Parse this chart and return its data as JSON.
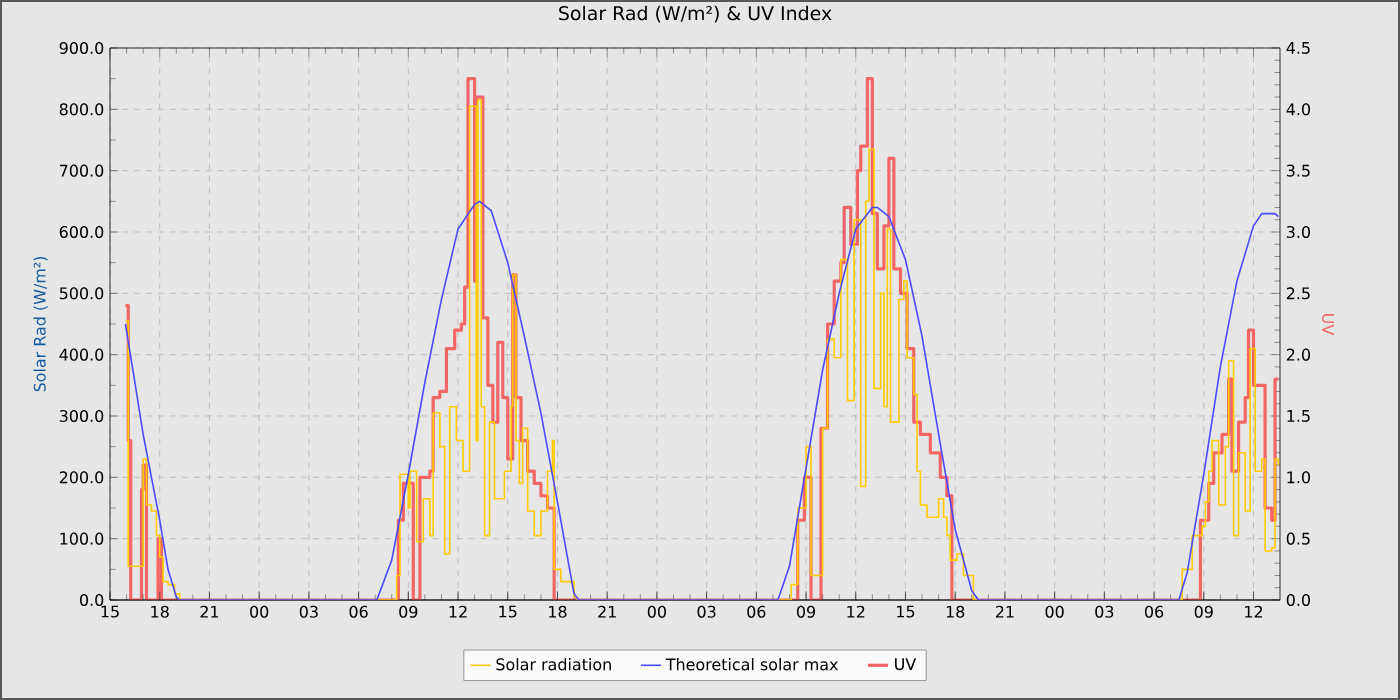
{
  "chart_data": {
    "type": "line",
    "title": "Solar Rad (W/m²) &  UV Index",
    "ylabel": "Solar Rad (W/m²)",
    "y2label": "UV",
    "xlim": [
      15,
      85.6
    ],
    "ylim": [
      0,
      900
    ],
    "y2lim": [
      0,
      4.5
    ],
    "xticks": [
      {
        "value": 15,
        "label": "15"
      },
      {
        "value": 18,
        "label": "18"
      },
      {
        "value": 21,
        "label": "21"
      },
      {
        "value": 24,
        "label": "00"
      },
      {
        "value": 27,
        "label": "03"
      },
      {
        "value": 30,
        "label": "06"
      },
      {
        "value": 33,
        "label": "09"
      },
      {
        "value": 36,
        "label": "12"
      },
      {
        "value": 39,
        "label": "15"
      },
      {
        "value": 42,
        "label": "18"
      },
      {
        "value": 45,
        "label": "21"
      },
      {
        "value": 48,
        "label": "00"
      },
      {
        "value": 51,
        "label": "03"
      },
      {
        "value": 54,
        "label": "06"
      },
      {
        "value": 57,
        "label": "09"
      },
      {
        "value": 60,
        "label": "12"
      },
      {
        "value": 63,
        "label": "15"
      },
      {
        "value": 66,
        "label": "18"
      },
      {
        "value": 69,
        "label": "21"
      },
      {
        "value": 72,
        "label": "00"
      },
      {
        "value": 75,
        "label": "03"
      },
      {
        "value": 78,
        "label": "06"
      },
      {
        "value": 81,
        "label": "09"
      },
      {
        "value": 84,
        "label": "12"
      }
    ],
    "yticks": [
      {
        "value": 0,
        "label": "0.0"
      },
      {
        "value": 100,
        "label": "100.0"
      },
      {
        "value": 200,
        "label": "200.0"
      },
      {
        "value": 300,
        "label": "300.0"
      },
      {
        "value": 400,
        "label": "400.0"
      },
      {
        "value": 500,
        "label": "500.0"
      },
      {
        "value": 600,
        "label": "600.0"
      },
      {
        "value": 700,
        "label": "700.0"
      },
      {
        "value": 800,
        "label": "800.0"
      },
      {
        "value": 900,
        "label": "900.0"
      }
    ],
    "y2ticks": [
      {
        "value": 0,
        "label": "0.0"
      },
      0.5,
      {
        "value": 1,
        "label": "1.0"
      },
      1.5,
      {
        "value": 2,
        "label": "2.0"
      },
      2.5,
      {
        "value": 3,
        "label": "3.0"
      },
      3.5,
      {
        "value": 4,
        "label": "4.0"
      },
      4.5
    ],
    "grid": true,
    "legend": "bottom",
    "series": [
      {
        "name": "Solar radiation",
        "type": "step",
        "color": "#ffcc00",
        "x": [
          15.93,
          16.1,
          17.0,
          17.2,
          17.5,
          17.8,
          18.0,
          18.2,
          18.5,
          18.9,
          19.2,
          31.1,
          32.3,
          32.5,
          33.0,
          33.1,
          33.5,
          33.9,
          34.3,
          34.5,
          34.9,
          35.2,
          35.5,
          35.9,
          36.3,
          36.7,
          37.0,
          37.1,
          37.2,
          37.4,
          37.6,
          37.9,
          38.2,
          38.6,
          38.8,
          39.2,
          39.3,
          39.5,
          39.7,
          39.9,
          40.2,
          40.6,
          41.0,
          41.4,
          41.7,
          41.8,
          42.2,
          43.0,
          43.2,
          55.2,
          56.1,
          56.5,
          57.0,
          57.3,
          58.0,
          58.3,
          58.7,
          59.1,
          59.5,
          59.9,
          60.3,
          60.6,
          60.8,
          61.1,
          61.5,
          61.7,
          61.9,
          62.1,
          62.6,
          62.9,
          63.1,
          63.5,
          63.7,
          63.9,
          64.3,
          64.7,
          65.0,
          65.3,
          65.5,
          65.7,
          66.1,
          66.5,
          67.1,
          79.3,
          79.7,
          80.3,
          80.9,
          81.1,
          81.3,
          81.5,
          81.9,
          82.3,
          82.5,
          82.8,
          83.1,
          83.5,
          83.8,
          84.1,
          84.5,
          84.7,
          85.1,
          85.3,
          85.5
        ],
        "values": [
          455,
          55,
          230,
          155,
          145,
          105,
          70,
          30,
          25,
          10,
          0,
          0,
          40,
          205,
          150,
          210,
          95,
          165,
          105,
          305,
          250,
          75,
          315,
          260,
          210,
          805,
          805,
          260,
          815,
          315,
          105,
          290,
          165,
          165,
          210,
          315,
          530,
          260,
          190,
          280,
          145,
          105,
          145,
          210,
          260,
          50,
          30,
          5,
          0,
          0,
          25,
          150,
          250,
          40,
          280,
          425,
          395,
          555,
          325,
          620,
          185,
          650,
          735,
          345,
          500,
          315,
          605,
          290,
          490,
          520,
          395,
          335,
          210,
          155,
          135,
          135,
          165,
          135,
          105,
          65,
          75,
          40,
          0,
          0,
          50,
          105,
          120,
          160,
          210,
          260,
          155,
          250,
          390,
          105,
          240,
          145,
          410,
          210,
          230,
          80,
          85,
          230,
          220
        ]
      },
      {
        "name": "Theoretical solar max",
        "type": "line",
        "color": "#4a4aff",
        "x": [
          15.93,
          16.5,
          17,
          17.5,
          18,
          18.5,
          19,
          19.2,
          31.1,
          32,
          33,
          34,
          35,
          36,
          37,
          37.3,
          38,
          39,
          40,
          41,
          42,
          43,
          43.3,
          55.3,
          56,
          57,
          58,
          59,
          60,
          61,
          61.3,
          62,
          63,
          64,
          65,
          66,
          67,
          67.4,
          79.5,
          80,
          81,
          82,
          83,
          84,
          84.5,
          85.3,
          85.5
        ],
        "values": [
          450,
          355,
          270,
          200,
          130,
          50,
          5,
          0,
          0,
          65,
          205,
          355,
          490,
          605,
          645,
          650,
          635,
          550,
          430,
          305,
          160,
          10,
          0,
          0,
          55,
          215,
          375,
          500,
          605,
          640,
          640,
          625,
          555,
          430,
          270,
          115,
          15,
          0,
          0,
          45,
          205,
          380,
          520,
          610,
          630,
          630,
          625
        ]
      },
      {
        "name": "UV",
        "type": "step",
        "axis": "y2",
        "color": "#f26666",
        "x": [
          15.93,
          16.1,
          16.25,
          16.9,
          17.0,
          17.2,
          17.9,
          18.1,
          32.4,
          32.7,
          33.3,
          33.7,
          34.3,
          34.5,
          34.9,
          35.3,
          35.8,
          36.2,
          36.4,
          36.6,
          37.0,
          37.1,
          37.5,
          37.8,
          38.1,
          38.4,
          38.7,
          39.0,
          39.3,
          39.5,
          39.8,
          40.2,
          40.6,
          41.0,
          41.4,
          41.8,
          56.5,
          56.9,
          57.3,
          57.9,
          58.3,
          58.7,
          59.1,
          59.3,
          59.7,
          60.1,
          60.3,
          60.7,
          61.0,
          61.3,
          61.7,
          62.0,
          62.3,
          62.7,
          63.1,
          63.5,
          63.9,
          64.5,
          65.1,
          65.5,
          65.8,
          80.8,
          81.3,
          81.6,
          82.1,
          82.5,
          82.7,
          83.1,
          83.5,
          83.7,
          84.0,
          84.5,
          84.7,
          85.1,
          85.3,
          85.5
        ],
        "values": [
          2.4,
          1.3,
          0,
          0.9,
          1.1,
          0,
          0.5,
          0,
          0.65,
          0.95,
          0,
          1.0,
          1.05,
          1.65,
          1.7,
          2.05,
          2.2,
          2.25,
          2.55,
          4.25,
          2.6,
          4.1,
          2.3,
          1.75,
          1.45,
          2.1,
          1.65,
          1.15,
          2.65,
          1.65,
          1.3,
          1.05,
          0.95,
          0.85,
          0.75,
          0,
          0.65,
          1.0,
          0,
          1.4,
          2.25,
          2.6,
          2.75,
          3.2,
          2.9,
          3.5,
          3.7,
          4.25,
          3.15,
          2.7,
          3.05,
          3.6,
          2.7,
          2.5,
          2.05,
          1.45,
          1.35,
          1.2,
          1.0,
          0.85,
          0,
          0.65,
          0.95,
          1.2,
          1.35,
          1.8,
          1.05,
          1.45,
          1.65,
          2.2,
          1.75,
          1.75,
          0.75,
          0.65,
          1.8,
          1.8
        ]
      }
    ]
  }
}
